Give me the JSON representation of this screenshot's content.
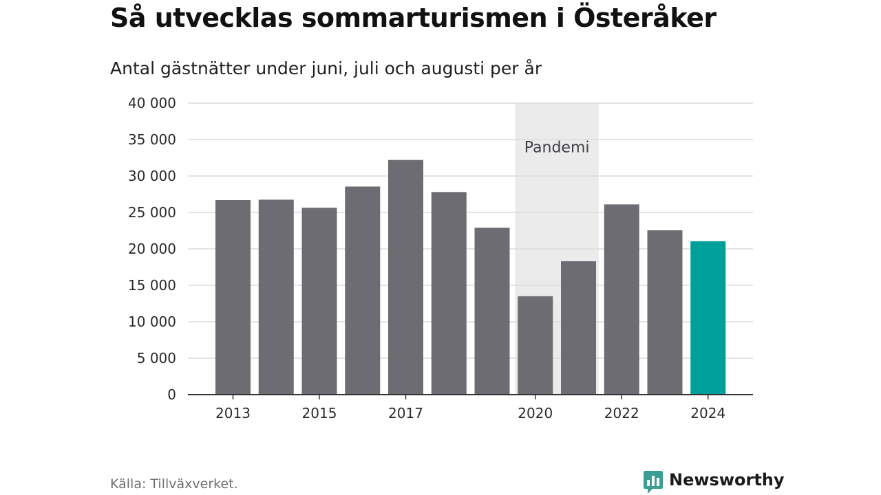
{
  "header": {
    "title": "Så utvecklas sommarturismen i Österåker",
    "subtitle": "Antal gästnätter under juni, juli och augusti per år"
  },
  "footer": {
    "source": "Källa: Tillväxverket.",
    "brand_name": "Newsworthy"
  },
  "colors": {
    "bar": "#6d6c72",
    "highlight": "#00a09a",
    "shade": "#ebebeb",
    "grid": "#dcdcdc",
    "axis": "#333333",
    "brand": "#3a9e95"
  },
  "chart_data": {
    "type": "bar",
    "title": "Så utvecklas sommarturismen i Österåker",
    "subtitle": "Antal gästnätter under juni, juli och augusti per år",
    "categories": [
      "2013",
      "2014",
      "2015",
      "2016",
      "2017",
      "2018",
      "2019",
      "2020",
      "2021",
      "2022",
      "2023",
      "2024"
    ],
    "values": [
      26700,
      26750,
      25650,
      28550,
      32200,
      27800,
      22900,
      13500,
      18300,
      26100,
      22550,
      21050
    ],
    "highlight_category": "2024",
    "x_tick_labels": [
      "2013",
      "2015",
      "2017",
      "2020",
      "2022",
      "2024"
    ],
    "y_ticks": [
      0,
      5000,
      10000,
      15000,
      20000,
      25000,
      30000,
      35000,
      40000
    ],
    "y_tick_labels": [
      "0",
      "5 000",
      "10 000",
      "15 000",
      "20 000",
      "25 000",
      "30 000",
      "35 000",
      "40 000"
    ],
    "ylim": [
      0,
      40000
    ],
    "grid": true,
    "xlabel": "",
    "ylabel": "",
    "annotation": {
      "label": "Pandemi",
      "from": "2020",
      "to": "2021"
    }
  }
}
